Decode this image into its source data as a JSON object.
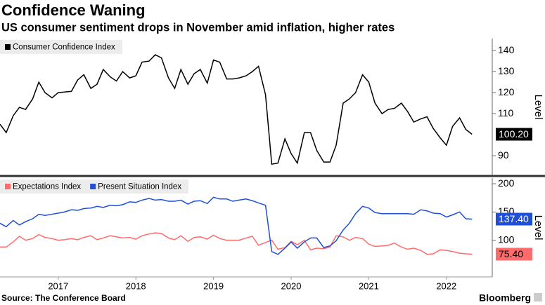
{
  "chart_data": [
    {
      "type": "line",
      "title": "Confidence Waning",
      "subtitle": "US consumer sentiment drops in November amid inflation, higher rates",
      "y_label": "Level",
      "x": [
        2016.75,
        2016.83,
        2016.92,
        2017,
        2017.08,
        2017.17,
        2017.25,
        2017.33,
        2017.42,
        2017.5,
        2017.58,
        2017.67,
        2017.75,
        2017.83,
        2017.92,
        2018,
        2018.08,
        2018.17,
        2018.25,
        2018.33,
        2018.42,
        2018.5,
        2018.58,
        2018.67,
        2018.75,
        2018.83,
        2018.92,
        2019,
        2019.08,
        2019.17,
        2019.25,
        2019.33,
        2019.42,
        2019.5,
        2019.58,
        2019.67,
        2019.75,
        2019.83,
        2019.92,
        2020,
        2020.08,
        2020.17,
        2020.25,
        2020.33,
        2020.42,
        2020.5,
        2020.58,
        2020.67,
        2020.75,
        2020.83,
        2020.92,
        2021,
        2021.08,
        2021.17,
        2021.25,
        2021.33,
        2021.42,
        2021.5,
        2021.58,
        2021.67,
        2021.75,
        2021.83,
        2021.92,
        2022,
        2022.08,
        2022.17,
        2022.25,
        2022.33,
        2022.42,
        2022.5,
        2022.58,
        2022.67,
        2022.75,
        2022.83
      ],
      "series": [
        {
          "name": "Consumer Confidence Index",
          "color": "#000000",
          "end_label": "100.20",
          "values": [
            105,
            101,
            109,
            113,
            112,
            117,
            125,
            120,
            117.5,
            120,
            120.3,
            120.6,
            126,
            128.5,
            122,
            124,
            131,
            127.5,
            125.5,
            130,
            127,
            128,
            134.5,
            135,
            138,
            136.5,
            127,
            122,
            131,
            124,
            129,
            131,
            124.5,
            135.5,
            134.5,
            126.5,
            126.5,
            127,
            128,
            130,
            132.5,
            119,
            86,
            86.5,
            98,
            91,
            86.5,
            101,
            101,
            92.5,
            87,
            87,
            95,
            115,
            117,
            120,
            128.5,
            125,
            115,
            110,
            112,
            112.5,
            115,
            111,
            106,
            107.5,
            108.5,
            103,
            98.5,
            95,
            104,
            108,
            102.5,
            100.2
          ]
        }
      ],
      "xlim": [
        2016.75,
        2023
      ],
      "ylim": [
        80.7,
        145.7
      ],
      "yticks": [
        90,
        110,
        120,
        130,
        140
      ]
    },
    {
      "type": "line",
      "y_label": "Level",
      "source": "Source: The Conference Board",
      "brand": "Bloomberg",
      "x": [
        2016.75,
        2016.83,
        2016.92,
        2017,
        2017.08,
        2017.17,
        2017.25,
        2017.33,
        2017.42,
        2017.5,
        2017.58,
        2017.67,
        2017.75,
        2017.83,
        2017.92,
        2018,
        2018.08,
        2018.17,
        2018.25,
        2018.33,
        2018.42,
        2018.5,
        2018.58,
        2018.67,
        2018.75,
        2018.83,
        2018.92,
        2019,
        2019.08,
        2019.17,
        2019.25,
        2019.33,
        2019.42,
        2019.5,
        2019.58,
        2019.67,
        2019.75,
        2019.83,
        2019.92,
        2020,
        2020.08,
        2020.17,
        2020.25,
        2020.33,
        2020.42,
        2020.5,
        2020.58,
        2020.67,
        2020.75,
        2020.83,
        2020.92,
        2021,
        2021.08,
        2021.17,
        2021.25,
        2021.33,
        2021.42,
        2021.5,
        2021.58,
        2021.67,
        2021.75,
        2021.83,
        2021.92,
        2022,
        2022.08,
        2022.17,
        2022.25,
        2022.33,
        2022.42,
        2022.5,
        2022.58,
        2022.67,
        2022.75,
        2022.83
      ],
      "series": [
        {
          "name": "Expectations Index",
          "color": "#ff6b6b",
          "end_label": "75.40",
          "values": [
            88,
            88,
            97,
            107,
            100,
            103,
            110,
            105,
            103,
            100,
            101,
            103,
            101,
            105,
            108,
            101,
            104,
            108,
            106,
            104,
            105,
            102,
            108,
            111,
            113,
            112,
            104,
            101,
            108,
            98,
            105,
            106,
            102,
            109,
            103,
            100,
            100,
            100,
            104,
            107,
            91,
            96,
            100,
            84,
            87,
            98,
            92,
            100,
            83,
            86,
            85,
            88,
            108,
            106,
            100,
            105,
            103,
            93,
            89,
            90,
            91,
            95,
            88,
            84,
            86,
            82,
            75,
            76,
            83,
            82,
            80,
            77,
            76,
            75.4
          ]
        },
        {
          "name": "Present Situation Index",
          "color": "#1f4fd6",
          "end_label": "137.40",
          "values": [
            130,
            124,
            135,
            127,
            133,
            138,
            146,
            144,
            146,
            148,
            150,
            154,
            153,
            156,
            157,
            160,
            158,
            162,
            161,
            163,
            168,
            167,
            171,
            174,
            171,
            172,
            169,
            169,
            171,
            164,
            169,
            170,
            165,
            176,
            173,
            173,
            169,
            171,
            173,
            170,
            166,
            162,
            80,
            75,
            86,
            97,
            86,
            97,
            104,
            104,
            87,
            90,
            99,
            118,
            130,
            147,
            160,
            157,
            149,
            147,
            147,
            147,
            147,
            147,
            146,
            154,
            152,
            148,
            147,
            141,
            145,
            150,
            138,
            137.4
          ]
        }
      ],
      "xlim": [
        2016.75,
        2023
      ],
      "ylim": [
        35,
        210
      ],
      "yticks": [
        100,
        150,
        200
      ],
      "xticks": [
        {
          "value": 2017.5,
          "label": "2017"
        },
        {
          "value": 2018.5,
          "label": "2018"
        },
        {
          "value": 2019.5,
          "label": "2019"
        },
        {
          "value": 2020.5,
          "label": "2020"
        },
        {
          "value": 2021.5,
          "label": "2021"
        },
        {
          "value": 2022.5,
          "label": "2022"
        }
      ]
    }
  ]
}
